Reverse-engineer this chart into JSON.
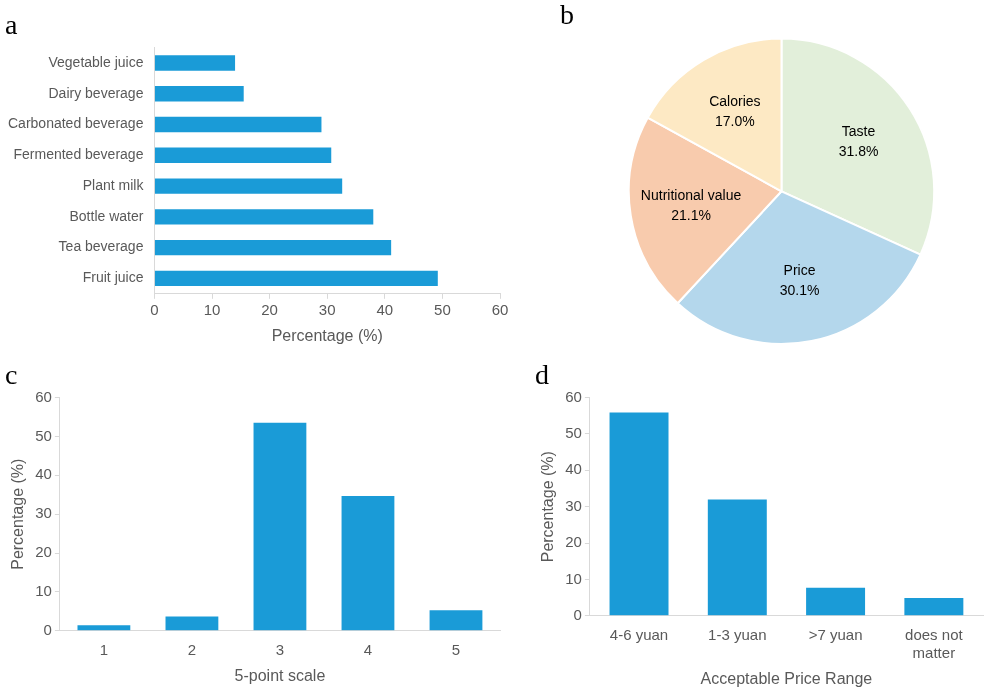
{
  "chart_data": [
    {
      "type": "bar",
      "title": "a",
      "orientation": "horizontal",
      "xlabel": "Percentage (%)",
      "categories": [
        "Vegetable juice",
        "Dairy beverage",
        "Carbonated beverage",
        "Fermented beverage",
        "Plant milk",
        "Bottle water",
        "Tea beverage",
        "Fruit juice"
      ],
      "values": [
        14.0,
        15.5,
        29.0,
        30.7,
        32.6,
        38.0,
        41.1,
        49.2
      ],
      "color": "#1a9bd7",
      "xlim": [
        0,
        60
      ],
      "xticks": [
        0,
        10,
        20,
        30,
        40,
        50,
        60
      ],
      "grid": false,
      "legend": false
    },
    {
      "type": "pie",
      "title": "b",
      "categories": [
        "Taste",
        "Price",
        "Nutritional value",
        "Calories"
      ],
      "values": [
        31.8,
        30.1,
        21.1,
        17.0
      ],
      "value_labels": [
        "31.8%",
        "30.1%",
        "21.1%",
        "17.0%"
      ],
      "colors": [
        "#e2efda",
        "#b4d7ec",
        "#f8cbad",
        "#fde9c4"
      ],
      "legend": false
    },
    {
      "type": "bar",
      "title": "c",
      "xlabel": "5-point scale",
      "ylabel": "Percentage (%)",
      "categories": [
        "1",
        "2",
        "3",
        "4",
        "5"
      ],
      "values": [
        1.4,
        3.7,
        53.5,
        34.7,
        5.3
      ],
      "color": "#1a9bd7",
      "ylim": [
        0,
        60
      ],
      "yticks": [
        0,
        10,
        20,
        30,
        40,
        50,
        60
      ],
      "grid": false,
      "legend": false
    },
    {
      "type": "bar",
      "title": "d",
      "xlabel": "Acceptable Price Range",
      "ylabel": "Percentage (%)",
      "categories": [
        "4-6 yuan",
        "1-3 yuan",
        ">7 yuan",
        "does not matter"
      ],
      "values": [
        55.9,
        32.0,
        7.7,
        4.9
      ],
      "color": "#1a9bd7",
      "ylim": [
        0,
        60
      ],
      "yticks": [
        0,
        10,
        20,
        30,
        40,
        50,
        60
      ],
      "grid": false,
      "legend": false
    }
  ]
}
